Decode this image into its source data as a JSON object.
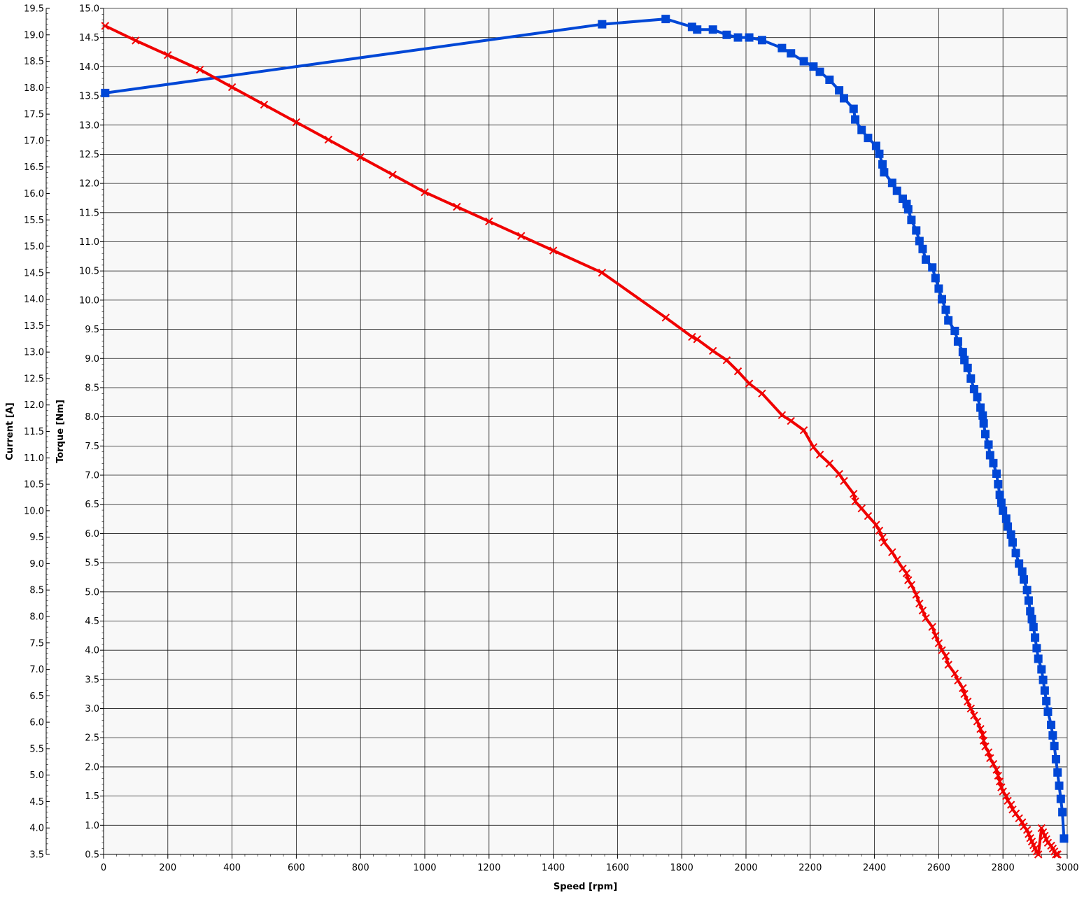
{
  "chart_data": {
    "type": "line",
    "xlabel": "Speed [rpm]",
    "ylabel_left_outer": "Current [A]",
    "ylabel_left_inner": "Torque [Nm]",
    "xlim": [
      0,
      3000
    ],
    "ylim_torque": [
      0.5,
      15.0
    ],
    "ylim_current": [
      3.5,
      19.5
    ],
    "x_ticks": [
      0,
      200,
      400,
      600,
      800,
      1000,
      1200,
      1400,
      1600,
      1800,
      2000,
      2200,
      2400,
      2600,
      2800,
      3000
    ],
    "torque_ticks": [
      "0.5",
      "1.0",
      "1.5",
      "2.0",
      "2.5",
      "3.0",
      "3.5",
      "4.0",
      "4.5",
      "5.0",
      "5.5",
      "6.0",
      "6.5",
      "7.0",
      "7.5",
      "8.0",
      "8.5",
      "9.0",
      "9.5",
      "10.0",
      "10.5",
      "11.0",
      "11.5",
      "12.0",
      "12.5",
      "13.0",
      "13.5",
      "14.0",
      "14.5",
      "15.0"
    ],
    "current_ticks": [
      "3.5",
      "4.0",
      "4.5",
      "5.0",
      "5.5",
      "6.0",
      "6.5",
      "7.0",
      "7.5",
      "8.0",
      "8.5",
      "9.0",
      "9.5",
      "10.0",
      "10.5",
      "11.0",
      "11.5",
      "12.0",
      "12.5",
      "13.0",
      "13.5",
      "14.0",
      "14.5",
      "15.0",
      "15.5",
      "16.0",
      "16.5",
      "17.0",
      "17.5",
      "18.0",
      "18.5",
      "19.0",
      "19.5"
    ],
    "grid": true,
    "colors": {
      "current": "#0047d6",
      "torque": "#f00000",
      "plot_bg": "#f8f8f8",
      "grid": "#1a1a1a"
    },
    "series": [
      {
        "axis": "current",
        "marker": "square",
        "color": "#0047d6",
        "x": [
          5,
          1552,
          1750,
          1832,
          1848,
          1897,
          1940,
          1975,
          2010,
          2050,
          2112,
          2140,
          2180,
          2210,
          2230,
          2260,
          2290,
          2305,
          2335,
          2340,
          2360,
          2380,
          2405,
          2415,
          2425,
          2430,
          2455,
          2470,
          2488,
          2500,
          2505,
          2515,
          2530,
          2540,
          2550,
          2560,
          2580,
          2590,
          2600,
          2610,
          2622,
          2630,
          2650,
          2660,
          2675,
          2680,
          2690,
          2700,
          2710,
          2720,
          2730,
          2737,
          2740,
          2745,
          2755,
          2760,
          2770,
          2780,
          2785,
          2790,
          2795,
          2800,
          2810,
          2815,
          2825,
          2830,
          2840,
          2850,
          2860,
          2865,
          2875,
          2880,
          2885,
          2890,
          2895,
          2900,
          2905,
          2910,
          2920,
          2925,
          2930,
          2935,
          2940,
          2950,
          2955,
          2960,
          2965,
          2970,
          2975,
          2980,
          2985,
          2990
        ],
        "y": [
          17.9,
          19.2,
          19.3,
          19.15,
          19.1,
          19.1,
          19.0,
          18.95,
          18.95,
          18.9,
          18.75,
          18.65,
          18.5,
          18.4,
          18.3,
          18.15,
          17.95,
          17.8,
          17.6,
          17.4,
          17.2,
          17.05,
          16.9,
          16.75,
          16.55,
          16.4,
          16.2,
          16.05,
          15.9,
          15.8,
          15.7,
          15.5,
          15.3,
          15.1,
          14.95,
          14.75,
          14.6,
          14.4,
          14.2,
          14.0,
          13.8,
          13.6,
          13.4,
          13.2,
          13.0,
          12.85,
          12.7,
          12.5,
          12.3,
          12.15,
          11.95,
          11.8,
          11.65,
          11.45,
          11.25,
          11.05,
          10.9,
          10.7,
          10.5,
          10.3,
          10.15,
          10.0,
          9.85,
          9.7,
          9.55,
          9.4,
          9.2,
          9.0,
          8.85,
          8.7,
          8.5,
          8.3,
          8.1,
          7.95,
          7.8,
          7.6,
          7.4,
          7.2,
          7.0,
          6.8,
          6.6,
          6.4,
          6.2,
          5.95,
          5.75,
          5.55,
          5.3,
          5.05,
          4.8,
          4.55,
          4.3,
          3.8
        ]
      },
      {
        "axis": "torque",
        "marker": "x",
        "color": "#f00000",
        "x": [
          5,
          100,
          200,
          300,
          400,
          500,
          600,
          700,
          800,
          900,
          1000,
          1100,
          1200,
          1300,
          1400,
          1552,
          1750,
          1832,
          1848,
          1897,
          1940,
          1975,
          2010,
          2050,
          2112,
          2140,
          2180,
          2210,
          2230,
          2260,
          2290,
          2305,
          2335,
          2340,
          2360,
          2380,
          2405,
          2415,
          2425,
          2430,
          2455,
          2470,
          2488,
          2500,
          2505,
          2515,
          2530,
          2540,
          2550,
          2560,
          2580,
          2590,
          2600,
          2610,
          2622,
          2630,
          2650,
          2660,
          2675,
          2680,
          2690,
          2700,
          2710,
          2720,
          2730,
          2737,
          2740,
          2745,
          2755,
          2760,
          2770,
          2780,
          2785,
          2790,
          2795,
          2800,
          2810,
          2815,
          2825,
          2830,
          2840,
          2850,
          2860,
          2865,
          2875,
          2880,
          2885,
          2890,
          2895,
          2900,
          2905,
          2910,
          2920,
          2925,
          2930,
          2935,
          2940,
          2950,
          2955,
          2960,
          2965,
          2970
        ],
        "y": [
          14.7,
          14.45,
          14.2,
          13.95,
          13.65,
          13.35,
          13.05,
          12.75,
          12.45,
          12.15,
          11.85,
          11.6,
          11.35,
          11.1,
          10.85,
          10.47,
          9.7,
          9.37,
          9.33,
          9.13,
          8.97,
          8.78,
          8.57,
          8.4,
          8.03,
          7.93,
          7.77,
          7.48,
          7.35,
          7.2,
          7.02,
          6.9,
          6.68,
          6.55,
          6.43,
          6.3,
          6.15,
          6.05,
          5.93,
          5.85,
          5.68,
          5.55,
          5.4,
          5.32,
          5.2,
          5.12,
          4.95,
          4.8,
          4.68,
          4.55,
          4.4,
          4.25,
          4.12,
          4.0,
          3.9,
          3.75,
          3.6,
          3.48,
          3.35,
          3.25,
          3.12,
          3.0,
          2.88,
          2.78,
          2.65,
          2.55,
          2.45,
          2.35,
          2.25,
          2.15,
          2.05,
          1.95,
          1.85,
          1.75,
          1.65,
          1.58,
          1.5,
          1.42,
          1.35,
          1.27,
          1.2,
          1.12,
          1.05,
          0.98,
          0.92,
          0.85,
          0.78,
          0.72,
          0.66,
          0.6,
          0.55,
          0.5,
          0.95,
          0.88,
          0.82,
          0.76,
          0.7,
          0.65,
          0.6,
          0.55,
          0.5,
          0.5
        ]
      }
    ]
  }
}
